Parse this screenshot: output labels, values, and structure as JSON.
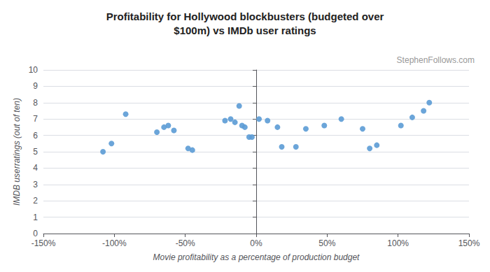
{
  "chart_data": {
    "type": "scatter",
    "title": "Profitability for Hollywood blockbusters (budgeted over\n$100m) vs IMDb user ratings",
    "xlabel": "Movie profitability as a percentage of production budget",
    "ylabel": "IMDB userratings (out of ten)",
    "annotation": "StephenFollows.com",
    "color": "#5B9BD5",
    "grid": "y",
    "xlim": [
      -1.5,
      1.5
    ],
    "ylim": [
      0,
      10
    ],
    "xticks": [
      {
        "value": -1.5,
        "label": "-150%"
      },
      {
        "value": -1.0,
        "label": "-100%"
      },
      {
        "value": -0.5,
        "label": "-50%"
      },
      {
        "value": 0.0,
        "label": "0%"
      },
      {
        "value": 0.5,
        "label": "50%"
      },
      {
        "value": 1.0,
        "label": "100%"
      },
      {
        "value": 1.5,
        "label": "150%"
      }
    ],
    "yticks": [
      0,
      1,
      2,
      3,
      4,
      5,
      6,
      7,
      8,
      9,
      10
    ],
    "x": [
      -1.02,
      -1.08,
      -0.92,
      -0.62,
      -0.65,
      -0.7,
      -0.58,
      -0.45,
      -0.48,
      -0.22,
      -0.18,
      -0.15,
      -0.12,
      -0.1,
      -0.08,
      -0.05,
      -0.03,
      0.02,
      0.08,
      0.15,
      0.18,
      0.28,
      0.35,
      0.48,
      0.6,
      0.75,
      0.8,
      0.85,
      1.02,
      1.1,
      1.18,
      1.22
    ],
    "values": [
      5.5,
      5.0,
      7.3,
      6.6,
      6.5,
      6.2,
      6.3,
      5.1,
      5.2,
      6.9,
      7.0,
      6.8,
      7.8,
      6.6,
      6.5,
      5.9,
      5.9,
      7.0,
      6.9,
      6.5,
      5.3,
      5.3,
      6.4,
      6.6,
      7.0,
      6.4,
      5.2,
      5.4,
      6.6,
      7.1,
      7.5,
      8.0
    ]
  }
}
